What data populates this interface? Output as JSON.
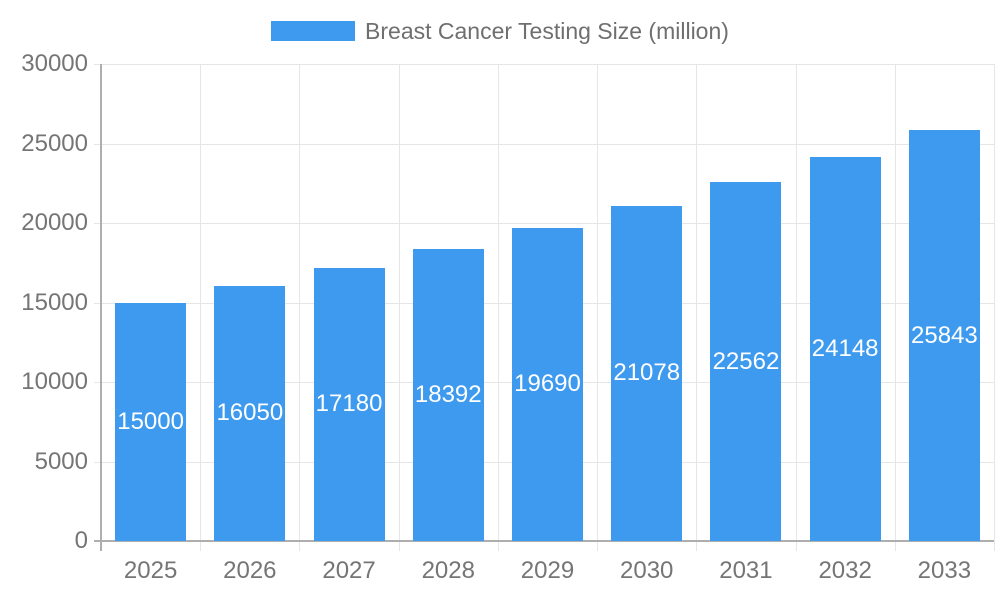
{
  "legend": {
    "label": "Breast Cancer Testing Size (million)"
  },
  "chart_data": {
    "type": "bar",
    "title": "Breast Cancer Testing Size (million)",
    "categories": [
      "2025",
      "2026",
      "2027",
      "2028",
      "2029",
      "2030",
      "2031",
      "2032",
      "2033"
    ],
    "values": [
      15000,
      16050,
      17180,
      18392,
      19690,
      21078,
      22562,
      24148,
      25843
    ],
    "xlabel": "",
    "ylabel": "",
    "ylim": [
      0,
      30000
    ],
    "yticks": [
      0,
      5000,
      10000,
      15000,
      20000,
      25000,
      30000
    ],
    "grid": true,
    "legend_position": "top",
    "value_labels": "inside-center"
  },
  "colors": {
    "bar": "#3E9AEE",
    "grid_line": "#E6E6E6",
    "axis_line": "#AEAEAE",
    "axis_text": "#757575",
    "bar_label_text": "#FFFFFF",
    "background": "#FFFFFF"
  }
}
